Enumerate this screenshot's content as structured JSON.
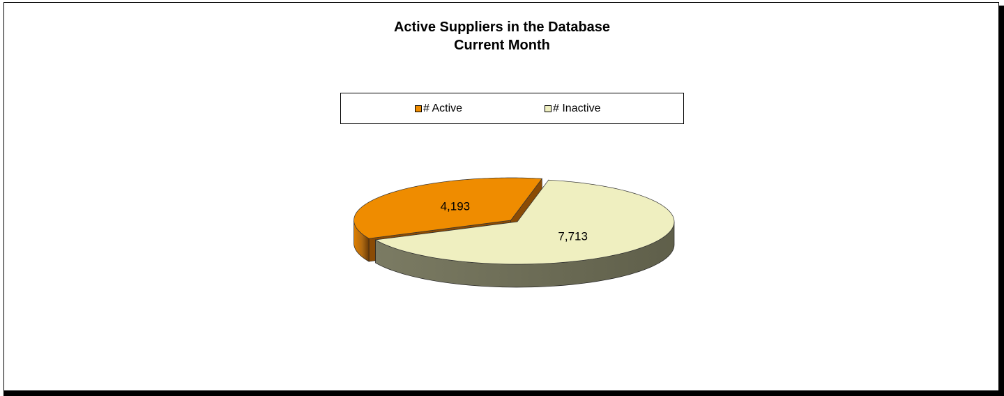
{
  "chart_data": {
    "type": "pie",
    "title": "Active Suppliers in the Database",
    "subtitle": "Current Month",
    "legend_position": "top",
    "style": "3d-exploded",
    "slices": [
      {
        "label": "# Active",
        "value": 4193,
        "value_label": "4,193",
        "color": "#ef8c00"
      },
      {
        "label": "# Inactive",
        "value": 7713,
        "value_label": "7,713",
        "color": "#efefc0"
      }
    ]
  }
}
